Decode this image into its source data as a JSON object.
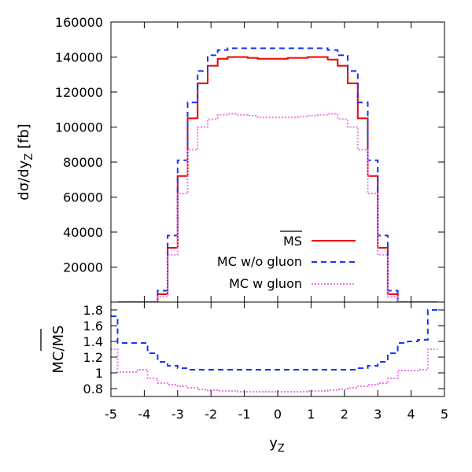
{
  "chart_data": [
    {
      "type": "line",
      "panel": "top",
      "xlabel": "",
      "ylabel": "dσ/dy",
      "ylabel_sub": "Z",
      "ylabel_unit": " [fb]",
      "xlim": [
        -5,
        5
      ],
      "ylim": [
        0,
        160000
      ],
      "grid": false,
      "legend": "bottom-right",
      "x_ticks": [
        -5,
        -4,
        -3,
        -2,
        -1,
        0,
        1,
        2,
        3,
        4,
        5
      ],
      "y_ticks": [
        20000,
        40000,
        60000,
        80000,
        100000,
        120000,
        140000,
        160000
      ],
      "y_tick_labels": [
        "20000",
        "40000",
        "60000",
        "80000",
        "100000",
        "120000",
        "140000",
        "160000"
      ],
      "bin_edges": [
        -4.8,
        -4.5,
        -4.2,
        -3.9,
        -3.6,
        -3.3,
        -3.0,
        -2.7,
        -2.4,
        -2.1,
        -1.8,
        -1.5,
        -1.2,
        -0.9,
        -0.6,
        -0.3,
        0.0,
        0.3,
        0.6,
        0.9,
        1.2,
        1.5,
        1.8,
        2.1,
        2.4,
        2.7,
        3.0,
        3.3,
        3.6,
        3.9,
        4.2,
        4.5,
        4.8
      ],
      "series": [
        {
          "name": "MS",
          "color": "#ee0000",
          "style": "solid",
          "values": [
            0,
            0,
            0,
            0,
            4500,
            31000,
            72000,
            105000,
            125000,
            135000,
            139000,
            140000,
            140000,
            139500,
            139000,
            139000,
            139000,
            139500,
            139500,
            140000,
            140000,
            138500,
            135000,
            125000,
            105000,
            72000,
            31000,
            4500,
            0,
            0,
            0,
            0
          ]
        },
        {
          "name": "MC w/o gluon",
          "color": "#1a33ff",
          "style": "dashed",
          "values": [
            0,
            0,
            0,
            0,
            6500,
            38000,
            81000,
            114000,
            132000,
            141000,
            144000,
            145000,
            145000,
            145000,
            145000,
            145000,
            145000,
            145000,
            145000,
            145000,
            145000,
            144000,
            141000,
            132000,
            114000,
            81000,
            38000,
            6500,
            0,
            0,
            0,
            0
          ]
        },
        {
          "name": "MC w gluon",
          "color": "#f078f0",
          "style": "dotted",
          "values": [
            0,
            0,
            0,
            0,
            3000,
            27000,
            62000,
            87000,
            100000,
            104500,
            107000,
            107500,
            107000,
            106500,
            105500,
            105500,
            105500,
            105500,
            106000,
            106500,
            107000,
            107500,
            104500,
            100000,
            87000,
            62000,
            27000,
            3000,
            0,
            0,
            0,
            0
          ]
        }
      ],
      "legend_entries": [
        "MS",
        "MC w/o gluon",
        "MC w gluon"
      ]
    },
    {
      "type": "line",
      "panel": "bottom",
      "xlabel": "y",
      "xlabel_sub": "Z",
      "ylabel": "MC/MS",
      "xlim": [
        -5,
        5
      ],
      "ylim": [
        0.7,
        1.9
      ],
      "grid": false,
      "x_ticks": [
        -5,
        -4,
        -3,
        -2,
        -1,
        0,
        1,
        2,
        3,
        4,
        5
      ],
      "x_tick_labels": [
        "-5",
        "-4",
        "-3",
        "-2",
        "-1",
        "0",
        "1",
        "2",
        "3",
        "4",
        "5"
      ],
      "y_ticks": [
        0.8,
        1.0,
        1.2,
        1.4,
        1.6,
        1.8
      ],
      "y_tick_labels": [
        "0.8",
        "1",
        "1.2",
        "1.4",
        "1.6",
        "1.8"
      ],
      "bin_edges": [
        -5.0,
        -4.8,
        -4.5,
        -4.2,
        -3.9,
        -3.6,
        -3.3,
        -3.0,
        -2.7,
        -2.4,
        -2.1,
        -1.8,
        -1.5,
        -1.2,
        -0.9,
        -0.6,
        -0.3,
        0.0,
        0.3,
        0.6,
        0.9,
        1.2,
        1.5,
        1.8,
        2.1,
        2.4,
        2.7,
        3.0,
        3.3,
        3.6,
        3.9,
        4.2,
        4.5,
        4.8,
        5.0
      ],
      "series": [
        {
          "name": "MC w/o gluon / MS",
          "color": "#1a33ff",
          "style": "dashed",
          "values": [
            1.72,
            1.38,
            1.38,
            1.38,
            1.25,
            1.14,
            1.09,
            1.06,
            1.04,
            1.04,
            1.04,
            1.04,
            1.04,
            1.04,
            1.04,
            1.04,
            1.04,
            1.04,
            1.04,
            1.04,
            1.04,
            1.04,
            1.04,
            1.04,
            1.04,
            1.06,
            1.09,
            1.14,
            1.25,
            1.38,
            1.4,
            1.42,
            1.8
          ]
        },
        {
          "name": "MC w gluon / MS",
          "color": "#f078f0",
          "style": "dotted",
          "values": [
            1.3,
            1.01,
            1.01,
            1.04,
            0.93,
            0.87,
            0.85,
            0.83,
            0.81,
            0.79,
            0.78,
            0.77,
            0.77,
            0.76,
            0.76,
            0.76,
            0.76,
            0.76,
            0.76,
            0.76,
            0.77,
            0.77,
            0.78,
            0.79,
            0.81,
            0.83,
            0.85,
            0.87,
            0.93,
            1.03,
            1.03,
            1.04,
            1.3
          ]
        }
      ]
    }
  ]
}
